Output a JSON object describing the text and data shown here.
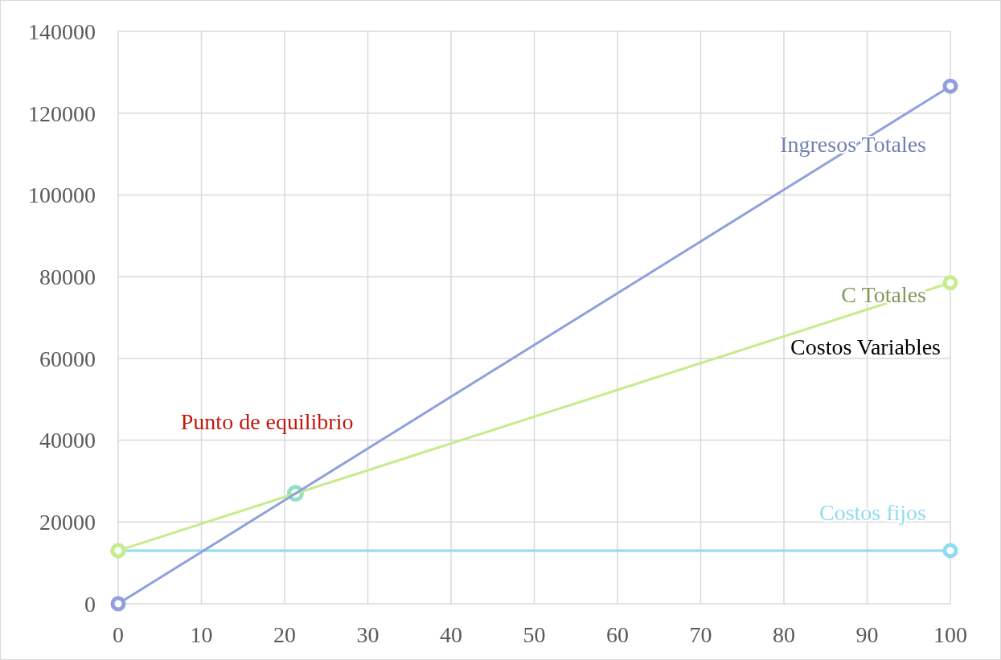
{
  "chart_data": {
    "type": "line",
    "xlim": [
      0,
      100
    ],
    "xticks": [
      0,
      10,
      20,
      30,
      40,
      50,
      60,
      70,
      80,
      90,
      100
    ],
    "ylim": [
      0,
      140000
    ],
    "yticks": [
      0,
      20000,
      40000,
      60000,
      80000,
      100000,
      120000,
      140000
    ],
    "grid": true,
    "marker": "circle",
    "line_style": "solid",
    "series": [
      {
        "name": "Ingresos Totales",
        "color": "#8fa0dc",
        "x": [
          0,
          100
        ],
        "values": [
          0,
          126600
        ]
      },
      {
        "name": "C Totales",
        "color": "#c6ec8c",
        "x": [
          0,
          100
        ],
        "values": [
          13000,
          78500
        ]
      },
      {
        "name": "Costos fijos",
        "color": "#8fdcf0",
        "x": [
          0,
          100
        ],
        "values": [
          13000,
          13000
        ]
      },
      {
        "type": "scatter",
        "color": "#8fe0c4",
        "x": [
          21.3
        ],
        "values": [
          27000
        ]
      }
    ],
    "annotations": [
      {
        "text": "Punto de equilibrio",
        "x": 21.3,
        "y": 27000
      },
      "Costos Variables"
    ]
  }
}
